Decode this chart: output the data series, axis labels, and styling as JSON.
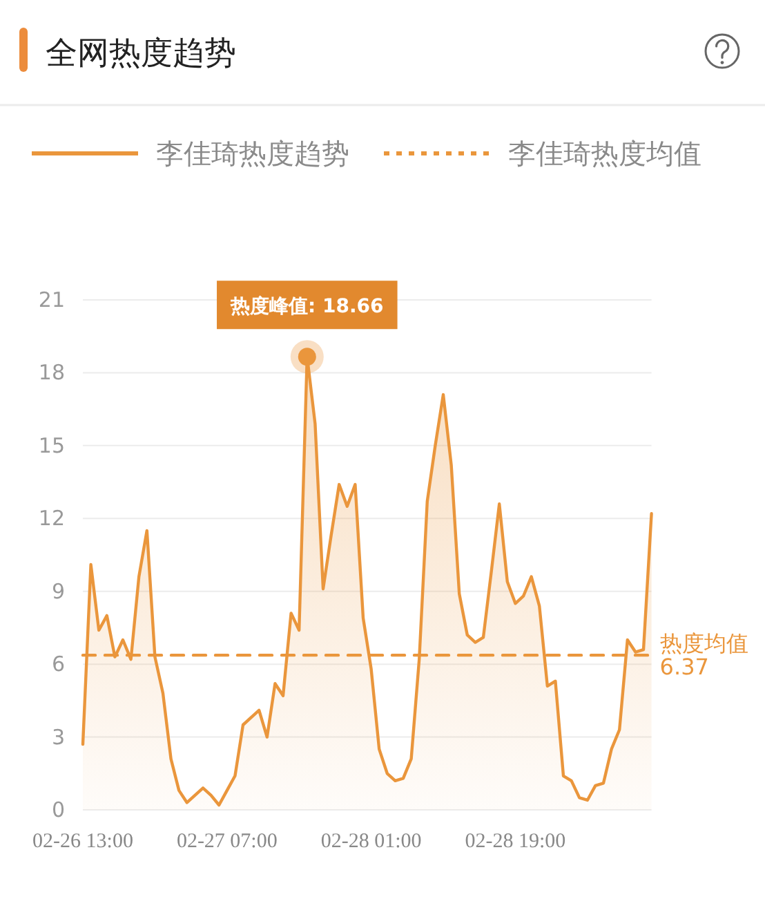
{
  "chart_data": {
    "type": "area",
    "title": "全网热度趋势",
    "categories": [
      "02-26 13:00",
      null,
      null,
      null,
      null,
      null,
      null,
      null,
      null,
      null,
      null,
      null,
      null,
      null,
      null,
      null,
      null,
      null,
      "02-27 07:00",
      null,
      null,
      null,
      null,
      null,
      null,
      null,
      null,
      null,
      null,
      null,
      null,
      null,
      null,
      null,
      null,
      null,
      "02-28 01:00",
      null,
      null,
      null,
      null,
      null,
      null,
      null,
      null,
      null,
      null,
      null,
      null,
      null,
      null,
      null,
      null,
      null,
      "02-28 19:00",
      null,
      null,
      null,
      null,
      null,
      null,
      null,
      null,
      null,
      null,
      null,
      null,
      null,
      null,
      null,
      null,
      null
    ],
    "series": [
      {
        "name": "李佳琦热度趋势",
        "color": "#ea963c",
        "values": [
          2.7,
          10.1,
          7.4,
          8.0,
          6.3,
          7.0,
          6.2,
          9.6,
          11.5,
          6.3,
          4.8,
          2.1,
          0.8,
          0.3,
          0.6,
          0.9,
          0.6,
          0.2,
          0.8,
          1.4,
          3.5,
          3.8,
          4.1,
          3.0,
          5.2,
          4.7,
          8.1,
          7.4,
          18.66,
          15.9,
          9.1,
          11.3,
          13.4,
          12.5,
          13.4,
          7.9,
          5.8,
          2.5,
          1.5,
          1.2,
          1.3,
          2.1,
          6.2,
          12.7,
          15.0,
          17.1,
          14.2,
          8.9,
          7.2,
          6.9,
          7.1,
          9.8,
          12.6,
          9.4,
          8.5,
          8.8,
          9.6,
          8.4,
          5.1,
          5.3,
          1.4,
          1.2,
          0.5,
          0.4,
          1.0,
          1.1,
          2.5,
          3.3,
          7.0,
          6.5,
          6.6,
          12.2
        ]
      },
      {
        "name": "李佳琦热度均值",
        "type": "line",
        "line_style": "dashed",
        "color": "#ea963c",
        "values": [
          6.37,
          6.37,
          6.37,
          6.37,
          6.37,
          6.37,
          6.37,
          6.37,
          6.37,
          6.37,
          6.37,
          6.37,
          6.37,
          6.37,
          6.37,
          6.37,
          6.37,
          6.37,
          6.37,
          6.37,
          6.37,
          6.37,
          6.37,
          6.37,
          6.37,
          6.37,
          6.37,
          6.37,
          6.37,
          6.37,
          6.37,
          6.37,
          6.37,
          6.37,
          6.37,
          6.37,
          6.37,
          6.37,
          6.37,
          6.37,
          6.37,
          6.37,
          6.37,
          6.37,
          6.37,
          6.37,
          6.37,
          6.37,
          6.37,
          6.37,
          6.37,
          6.37,
          6.37,
          6.37,
          6.37,
          6.37,
          6.37,
          6.37,
          6.37,
          6.37,
          6.37,
          6.37,
          6.37,
          6.37,
          6.37,
          6.37,
          6.37,
          6.37,
          6.37,
          6.37,
          6.37,
          6.37
        ]
      }
    ],
    "ylim": [
      0,
      21
    ],
    "yticks": [
      0,
      3,
      6,
      9,
      12,
      15,
      18,
      21
    ],
    "grid": "y",
    "legend": "top",
    "annotations": [
      {
        "text": "热度峰值: 18.66",
        "y": 18.66
      },
      "热度均值\n6.37"
    ]
  }
}
